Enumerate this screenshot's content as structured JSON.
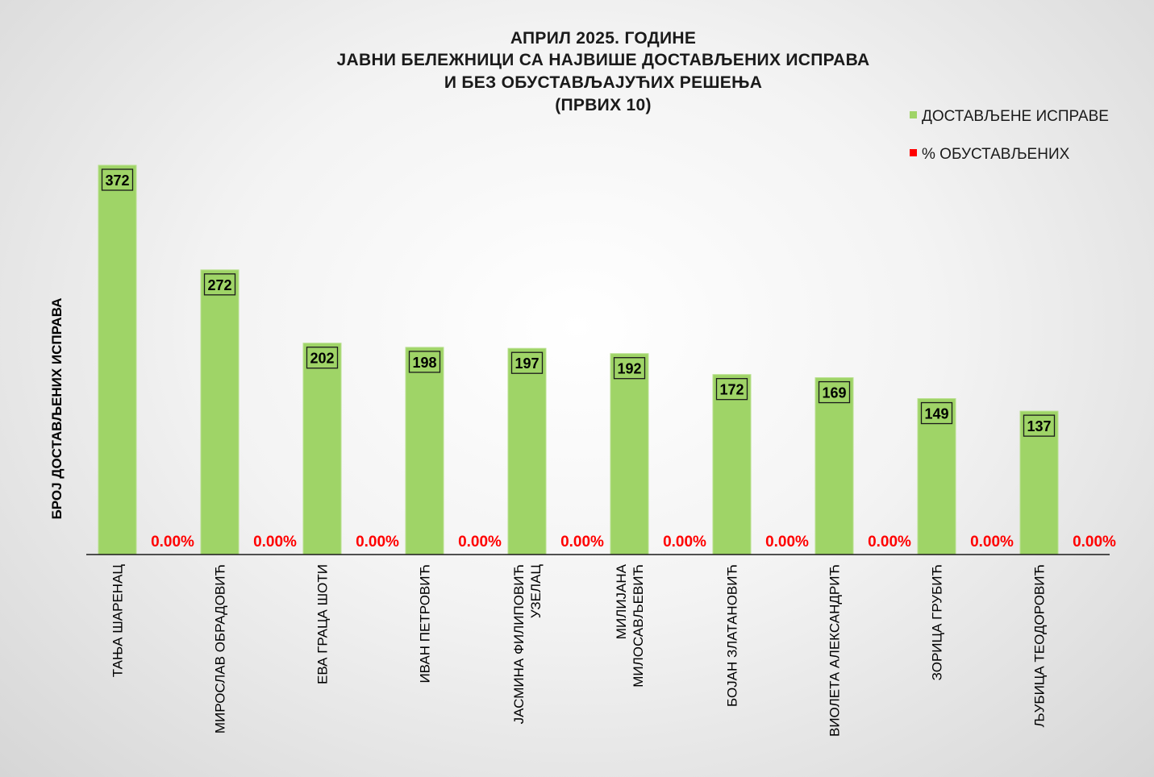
{
  "chart_data": {
    "type": "bar",
    "title_lines": [
      "АПРИЛ 2025. ГОДИНЕ",
      "ЈАВНИ БЕЛЕЖНИЦИ СА НАЈВИШЕ ДОСТАВЉЕНИХ ИСПРАВА",
      "И БЕЗ ОБУСТАВЉАЈУЋИХ РЕШЕЊА",
      "(ПРВИХ 10)"
    ],
    "ylabel": "БРОЈ ДОСТАВЉЕНИХ ИСПРАВА",
    "categories": [
      [
        "ТАЊА ШАРЕНАЦ"
      ],
      [
        "МИРОСЛАВ ОБРАДОВИЋ"
      ],
      [
        "ЕВА ГРАЦА ШОТИ"
      ],
      [
        "ИВАН ПЕТРОВИЋ"
      ],
      [
        "ЈАСМИНА ФИЛИПОВИЋ",
        "УЗЕЛАЦ"
      ],
      [
        "МИЛИЈАНА",
        "МИЛОСАВЉЕВИЋ"
      ],
      [
        "БОЈАН ЗЛАТАНОВИЋ"
      ],
      [
        "ВИОЛЕТА АЛЕКСАНДРИЋ"
      ],
      [
        "ЗОРИЦА ГРУБИЋ"
      ],
      [
        "ЉУБИЦА ТЕОДОРОВИЋ"
      ]
    ],
    "series": [
      {
        "name": "ДОСТАВЉЕНЕ ИСПРАВЕ",
        "color": "#9fd467",
        "values": [
          372,
          272,
          202,
          198,
          197,
          192,
          172,
          169,
          149,
          137
        ],
        "labels": [
          "372",
          "272",
          "202",
          "198",
          "197",
          "192",
          "172",
          "169",
          "149",
          "137"
        ]
      },
      {
        "name": "% ОБУСТАВЉЕНИХ",
        "color": "#ff0000",
        "values": [
          0,
          0,
          0,
          0,
          0,
          0,
          0,
          0,
          0,
          0
        ],
        "labels": [
          "0.00%",
          "0.00%",
          "0.00%",
          "0.00%",
          "0.00%",
          "0.00%",
          "0.00%",
          "0.00%",
          "0.00%",
          "0.00%"
        ]
      }
    ],
    "ylim": [
      0,
      372
    ],
    "grid": false,
    "legend_position": "top-right"
  }
}
